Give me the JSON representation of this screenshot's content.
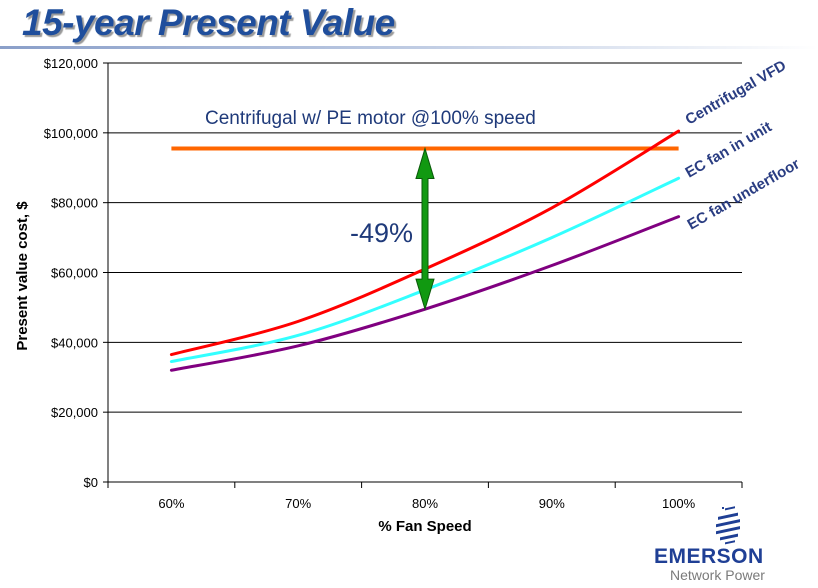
{
  "slide": {
    "title": "15-year Present Value"
  },
  "colors": {
    "centrifugal_vfd": "#ff0000",
    "ec_fan_in_unit": "#33ffff",
    "ec_fan_underfloor": "#800080",
    "centrifugal_pe": "#ff6600",
    "arrow": "#119911",
    "title": "#1f4e9c"
  },
  "chart_data": {
    "type": "line",
    "xlabel": "% Fan Speed",
    "ylabel": "Present value cost, $",
    "x": [
      60,
      70,
      80,
      90,
      100
    ],
    "xlim": [
      55,
      105
    ],
    "ylim": [
      0,
      120000
    ],
    "x_tick_labels": [
      "60%",
      "70%",
      "80%",
      "90%",
      "100%"
    ],
    "y_ticks": [
      0,
      20000,
      40000,
      60000,
      80000,
      100000,
      120000
    ],
    "y_tick_labels": [
      "$0",
      "$20,000",
      "$40,000",
      "$60,000",
      "$80,000",
      "$100,000",
      "$120,000"
    ],
    "grid": "horizontal",
    "series": [
      {
        "name": "Centrifugal VFD",
        "color": "#ff0000",
        "values": [
          36500,
          46000,
          61000,
          78500,
          100500
        ]
      },
      {
        "name": "EC fan in unit",
        "color": "#33ffff",
        "values": [
          34500,
          42000,
          55000,
          70000,
          87000
        ]
      },
      {
        "name": "EC fan underfloor",
        "color": "#800080",
        "values": [
          32000,
          39000,
          49500,
          62000,
          76000
        ]
      }
    ],
    "reference_line": {
      "label": "Centrifugal w/ PE motor @100% speed",
      "value": 95500,
      "color": "#ff6600",
      "x_range": [
        60,
        100
      ]
    },
    "annotation": {
      "label": "-49%",
      "x": 80,
      "from": 95500,
      "to": 49500
    }
  },
  "logo": {
    "name": "EMERSON",
    "subtitle": "Network Power"
  }
}
